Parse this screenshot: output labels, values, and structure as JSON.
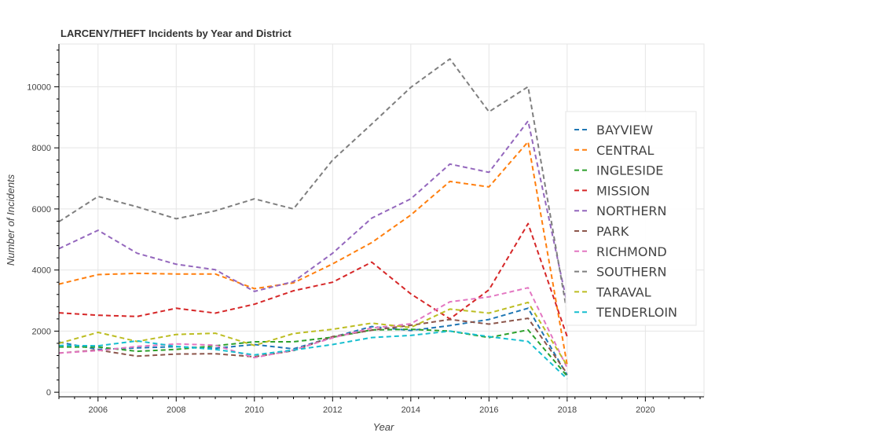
{
  "chart_data": {
    "type": "line",
    "title": "LARCENY/THEFT Incidents by Year and District",
    "xlabel": "Year",
    "ylabel": "Number of Incidents",
    "xlim": [
      2005,
      2021.5
    ],
    "ylim": [
      -150,
      11400
    ],
    "x_ticks": [
      2006,
      2008,
      2010,
      2012,
      2014,
      2016,
      2018,
      2020
    ],
    "y_ticks": [
      0,
      2000,
      4000,
      6000,
      8000,
      10000
    ],
    "grid": true,
    "legend_position": "right",
    "line_style": "dashed",
    "x": [
      2005,
      2006,
      2007,
      2008,
      2009,
      2010,
      2011,
      2012,
      2013,
      2014,
      2015,
      2016,
      2017,
      2018
    ],
    "series": [
      {
        "name": "BAYVIEW",
        "color": "#1f77b4",
        "values": [
          1640,
          1400,
          1450,
          1490,
          1440,
          1560,
          1420,
          1800,
          2150,
          2020,
          2180,
          2380,
          2750,
          560
        ]
      },
      {
        "name": "CENTRAL",
        "color": "#ff7f0e",
        "values": [
          3540,
          3850,
          3890,
          3870,
          3870,
          3390,
          3580,
          4200,
          4900,
          5800,
          6900,
          6720,
          8200,
          900
        ]
      },
      {
        "name": "INGLESIDE",
        "color": "#2ca02c",
        "values": [
          1480,
          1480,
          1340,
          1400,
          1520,
          1650,
          1650,
          1800,
          2040,
          2060,
          2000,
          1790,
          2040,
          530
        ]
      },
      {
        "name": "MISSION",
        "color": "#d62728",
        "values": [
          2600,
          2520,
          2480,
          2750,
          2590,
          2880,
          3320,
          3600,
          4260,
          3220,
          2400,
          3350,
          5520,
          1820
        ]
      },
      {
        "name": "NORTHERN",
        "color": "#9467bd",
        "values": [
          4700,
          5300,
          4550,
          4190,
          4010,
          3300,
          3620,
          4550,
          5700,
          6330,
          7470,
          7200,
          8880,
          2900
        ]
      },
      {
        "name": "PARK",
        "color": "#8c564b",
        "values": [
          1280,
          1380,
          1180,
          1250,
          1260,
          1160,
          1360,
          1820,
          2030,
          2190,
          2380,
          2230,
          2420,
          610
        ]
      },
      {
        "name": "RICHMOND",
        "color": "#e377c2",
        "values": [
          1280,
          1360,
          1500,
          1580,
          1540,
          1130,
          1380,
          1780,
          2100,
          2240,
          2960,
          3120,
          3420,
          800
        ]
      },
      {
        "name": "SOUTHERN",
        "color": "#7f7f7f",
        "values": [
          5580,
          6410,
          6070,
          5680,
          5940,
          6330,
          6000,
          7600,
          8780,
          9980,
          10910,
          9180,
          10000,
          2600
        ]
      },
      {
        "name": "TARAVAL",
        "color": "#bcbd22",
        "values": [
          1600,
          1960,
          1660,
          1890,
          1930,
          1530,
          1920,
          2060,
          2260,
          2120,
          2720,
          2590,
          2940,
          870
        ]
      },
      {
        "name": "TENDERLOIN",
        "color": "#17becf",
        "values": [
          1530,
          1520,
          1680,
          1500,
          1400,
          1220,
          1380,
          1560,
          1790,
          1860,
          2000,
          1820,
          1660,
          440
        ]
      }
    ]
  }
}
